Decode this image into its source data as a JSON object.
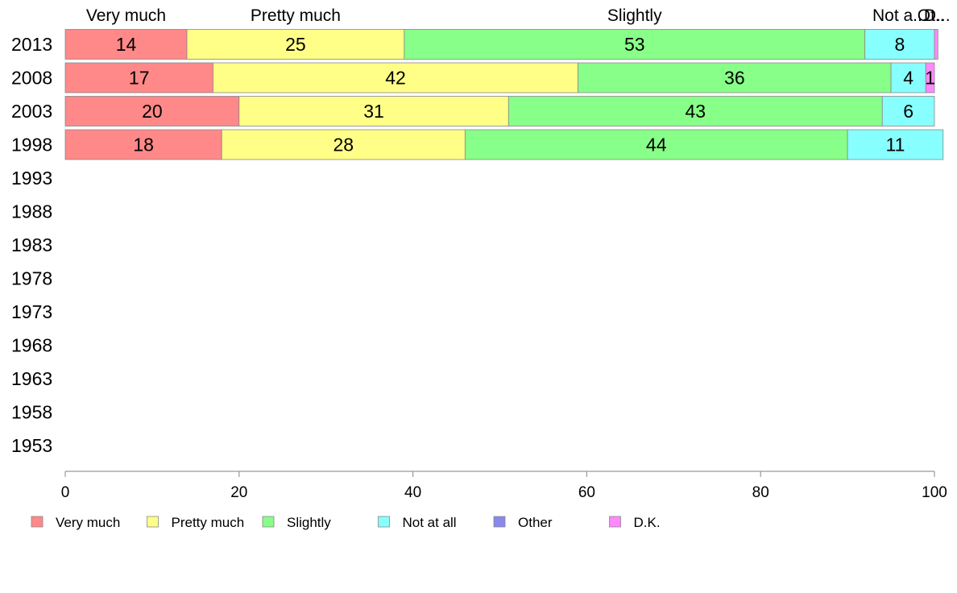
{
  "chart_data": {
    "type": "bar",
    "orientation": "horizontal",
    "stacked": true,
    "categories": [
      "2013",
      "2008",
      "2003",
      "1998",
      "1993",
      "1988",
      "1983",
      "1978",
      "1973",
      "1968",
      "1963",
      "1958",
      "1953"
    ],
    "series": [
      {
        "name": "Very much",
        "color": "#ff8888",
        "values": [
          14,
          17,
          20,
          18,
          null,
          null,
          null,
          null,
          null,
          null,
          null,
          null,
          null
        ]
      },
      {
        "name": "Pretty much",
        "color": "#ffff88",
        "values": [
          25,
          42,
          31,
          28,
          null,
          null,
          null,
          null,
          null,
          null,
          null,
          null,
          null
        ]
      },
      {
        "name": "Slightly",
        "color": "#88ff88",
        "values": [
          53,
          36,
          43,
          44,
          null,
          null,
          null,
          null,
          null,
          null,
          null,
          null,
          null
        ]
      },
      {
        "name": "Not at all",
        "color": "#88ffff",
        "values": [
          8,
          4,
          6,
          11,
          null,
          null,
          null,
          null,
          null,
          null,
          null,
          null,
          null
        ]
      },
      {
        "name": "Other",
        "color": "#8888ee",
        "values": [
          0,
          0,
          0,
          0,
          null,
          null,
          null,
          null,
          null,
          null,
          null,
          null,
          null
        ]
      },
      {
        "name": "D.K.",
        "color": "#ff88ff",
        "values": [
          0.4,
          1,
          0,
          0,
          null,
          null,
          null,
          null,
          null,
          null,
          null,
          null,
          null
        ]
      }
    ],
    "top_labels": [
      "Very much",
      "Pretty much",
      "Slightly",
      "Not a...",
      "Ot..",
      "D..."
    ],
    "xlim": [
      0,
      100
    ],
    "xticks": [
      0,
      20,
      40,
      60,
      80,
      100
    ],
    "legend_position": "bottom",
    "grid": false,
    "title": "",
    "xlabel": "",
    "ylabel": ""
  }
}
